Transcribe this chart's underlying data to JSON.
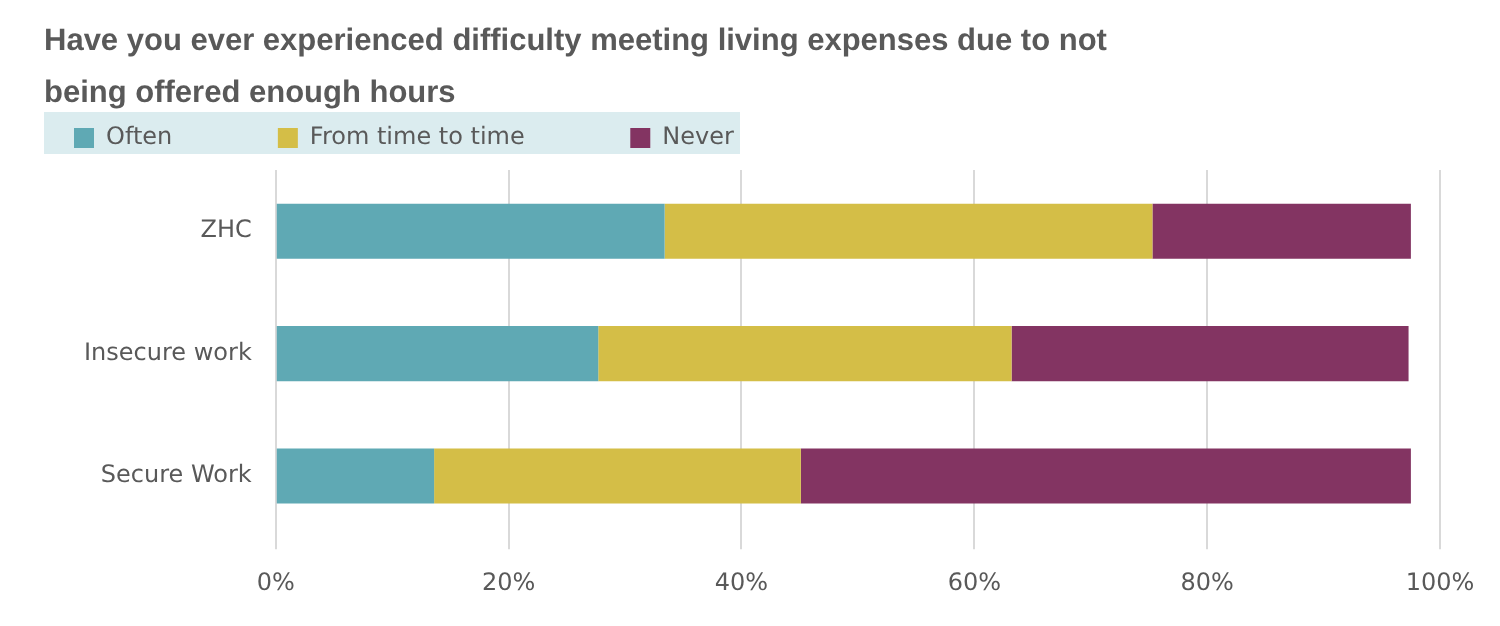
{
  "chart_data": {
    "type": "bar",
    "orientation": "horizontal",
    "stacked": true,
    "title": "Have you ever experienced difficulty meeting living expenses due to not being offered enough hours",
    "categories": [
      "ZHC",
      "Insecure work",
      "Secure Work"
    ],
    "series": [
      {
        "name": "Often",
        "color": "#5fa9b4",
        "values": [
          33.4,
          27.7,
          13.6
        ]
      },
      {
        "name": "From time to time",
        "color": "#d4be47",
        "values": [
          41.9,
          35.5,
          31.5
        ]
      },
      {
        "name": "Never",
        "color": "#833462",
        "values": [
          22.2,
          34.1,
          52.4
        ]
      }
    ],
    "xlim": [
      0,
      100
    ],
    "xticks": [
      {
        "value": 0,
        "label": "0%"
      },
      {
        "value": 20,
        "label": "20%"
      },
      {
        "value": 40,
        "label": "40%"
      },
      {
        "value": 60,
        "label": "60%"
      },
      {
        "value": 80,
        "label": "80%"
      },
      {
        "value": 100,
        "label": "100%"
      }
    ],
    "grid": "x",
    "legend": "top left"
  }
}
